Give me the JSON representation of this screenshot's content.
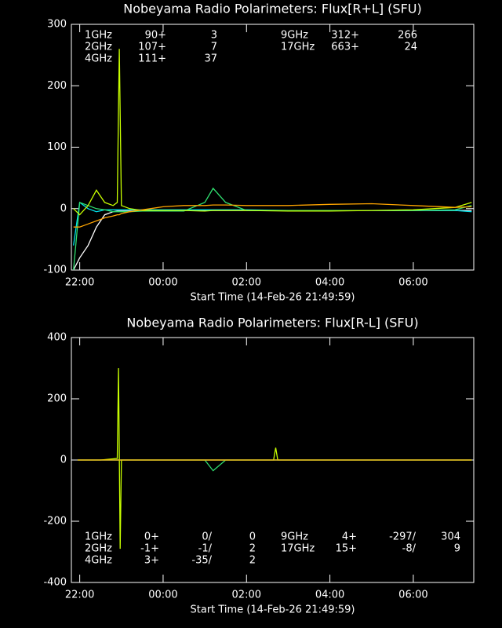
{
  "chart_data": [
    {
      "type": "line",
      "title": "Nobeyama Radio Polarimeters: Flux[R+L] (SFU)",
      "x_label": "Start Time (14-Feb-26 21:49:59)",
      "x": [
        21.85,
        22.0,
        22.2,
        22.4,
        22.6,
        22.8,
        22.9,
        22.95,
        23.0,
        23.2,
        23.5,
        24.0,
        24.5,
        25.0,
        25.2,
        25.5,
        26.0,
        27.0,
        28.0,
        29.0,
        30.0,
        31.0,
        31.4
      ],
      "xlim": [
        21.8,
        31.45
      ],
      "xticks": [
        {
          "value": 22,
          "label": "22:00"
        },
        {
          "value": 24,
          "label": "00:00"
        },
        {
          "value": 26,
          "label": "02:00"
        },
        {
          "value": 28,
          "label": "04:00"
        },
        {
          "value": 30,
          "label": "06:00"
        }
      ],
      "ylim": [
        -100,
        300
      ],
      "yticks": [
        -100,
        0,
        100,
        200,
        300
      ],
      "series": [
        {
          "name": "1GHz",
          "color": "#ffffff",
          "legend_texts": [
            "90+",
            "3"
          ],
          "values": [
            -100,
            -80,
            -60,
            -30,
            -10,
            -5,
            -4,
            -4,
            -4,
            -4,
            -4,
            -3,
            -3,
            -3,
            -3,
            -3,
            -3,
            -3,
            -3,
            -3,
            -3,
            -3,
            -3
          ]
        },
        {
          "name": "2GHz",
          "color": "#00e5ee",
          "legend_texts": [
            "107+",
            "7"
          ],
          "values": [
            -60,
            10,
            0,
            -5,
            -2,
            -2,
            -2,
            -2,
            -2,
            -2,
            -2,
            -2,
            -2,
            -2,
            -2,
            -2,
            -2,
            -3,
            -3,
            -3,
            -3,
            -3,
            -5
          ]
        },
        {
          "name": "4GHz",
          "color": "#30e070",
          "legend_texts": [
            "111+",
            "37"
          ],
          "values": [
            -100,
            10,
            5,
            0,
            -2,
            -5,
            -5,
            -5,
            -5,
            -5,
            -4,
            -4,
            -4,
            10,
            33,
            10,
            -3,
            -3,
            -3,
            -3,
            -3,
            -2,
            5
          ]
        },
        {
          "name": "9GHz",
          "color": "#c8ff00",
          "legend_texts": [
            "312+",
            "266"
          ],
          "values": [
            0,
            -10,
            5,
            30,
            10,
            5,
            10,
            260,
            5,
            0,
            -3,
            -3,
            -3,
            -4,
            -3,
            -3,
            -3,
            -4,
            -4,
            -3,
            -2,
            2,
            10
          ]
        },
        {
          "name": "17GHz",
          "color": "#ffa500",
          "legend_texts": [
            "663+",
            "24"
          ],
          "values": [
            -30,
            -30,
            -25,
            -20,
            -15,
            -12,
            -10,
            -10,
            -8,
            -5,
            -2,
            3,
            5,
            5,
            6,
            6,
            5,
            5,
            7,
            8,
            5,
            2,
            3
          ]
        }
      ]
    },
    {
      "type": "line",
      "title": "Nobeyama Radio Polarimeters: Flux[R-L] (SFU)",
      "x_label": "Start Time (14-Feb-26 21:49:59)",
      "x": [
        21.95,
        22.5,
        22.9,
        22.93,
        22.97,
        23.0,
        24.0,
        25.0,
        25.2,
        25.5,
        26.0,
        26.65,
        26.7,
        26.75,
        28.0,
        30.0,
        31.4
      ],
      "xlim": [
        21.8,
        31.45
      ],
      "xticks": [
        {
          "value": 22,
          "label": "22:00"
        },
        {
          "value": 24,
          "label": "00:00"
        },
        {
          "value": 26,
          "label": "02:00"
        },
        {
          "value": 28,
          "label": "04:00"
        },
        {
          "value": 30,
          "label": "06:00"
        }
      ],
      "ylim": [
        -400,
        400
      ],
      "yticks": [
        -400,
        -200,
        0,
        200,
        400
      ],
      "series": [
        {
          "name": "1GHz",
          "color": "#ffffff",
          "legend_texts": [
            "0+",
            "0/",
            "0"
          ],
          "values": [
            0,
            0,
            0,
            0,
            0,
            0,
            0,
            0,
            0,
            0,
            0,
            0,
            0,
            0,
            0,
            0,
            0
          ]
        },
        {
          "name": "2GHz",
          "color": "#00e5ee",
          "legend_texts": [
            "-1+",
            "-1/",
            "2"
          ],
          "values": [
            0,
            0,
            0,
            0,
            0,
            0,
            0,
            0,
            0,
            0,
            0,
            0,
            0,
            0,
            0,
            0,
            0
          ]
        },
        {
          "name": "4GHz",
          "color": "#30e070",
          "legend_texts": [
            "3+",
            "-35/",
            "2"
          ],
          "values": [
            0,
            0,
            0,
            0,
            0,
            0,
            0,
            0,
            -35,
            0,
            0,
            0,
            0,
            0,
            0,
            0,
            0
          ]
        },
        {
          "name": "9GHz",
          "color": "#c8ff00",
          "legend_texts": [
            "4+",
            "-297/",
            "304"
          ],
          "values": [
            0,
            0,
            5,
            300,
            -290,
            0,
            0,
            0,
            0,
            0,
            0,
            0,
            40,
            0,
            0,
            0,
            0
          ]
        },
        {
          "name": "17GHz",
          "color": "#ffa500",
          "legend_texts": [
            "15+",
            "-8/",
            "9"
          ],
          "values": [
            0,
            0,
            0,
            0,
            0,
            0,
            0,
            0,
            0,
            0,
            0,
            0,
            0,
            0,
            0,
            0,
            0
          ]
        }
      ]
    }
  ]
}
